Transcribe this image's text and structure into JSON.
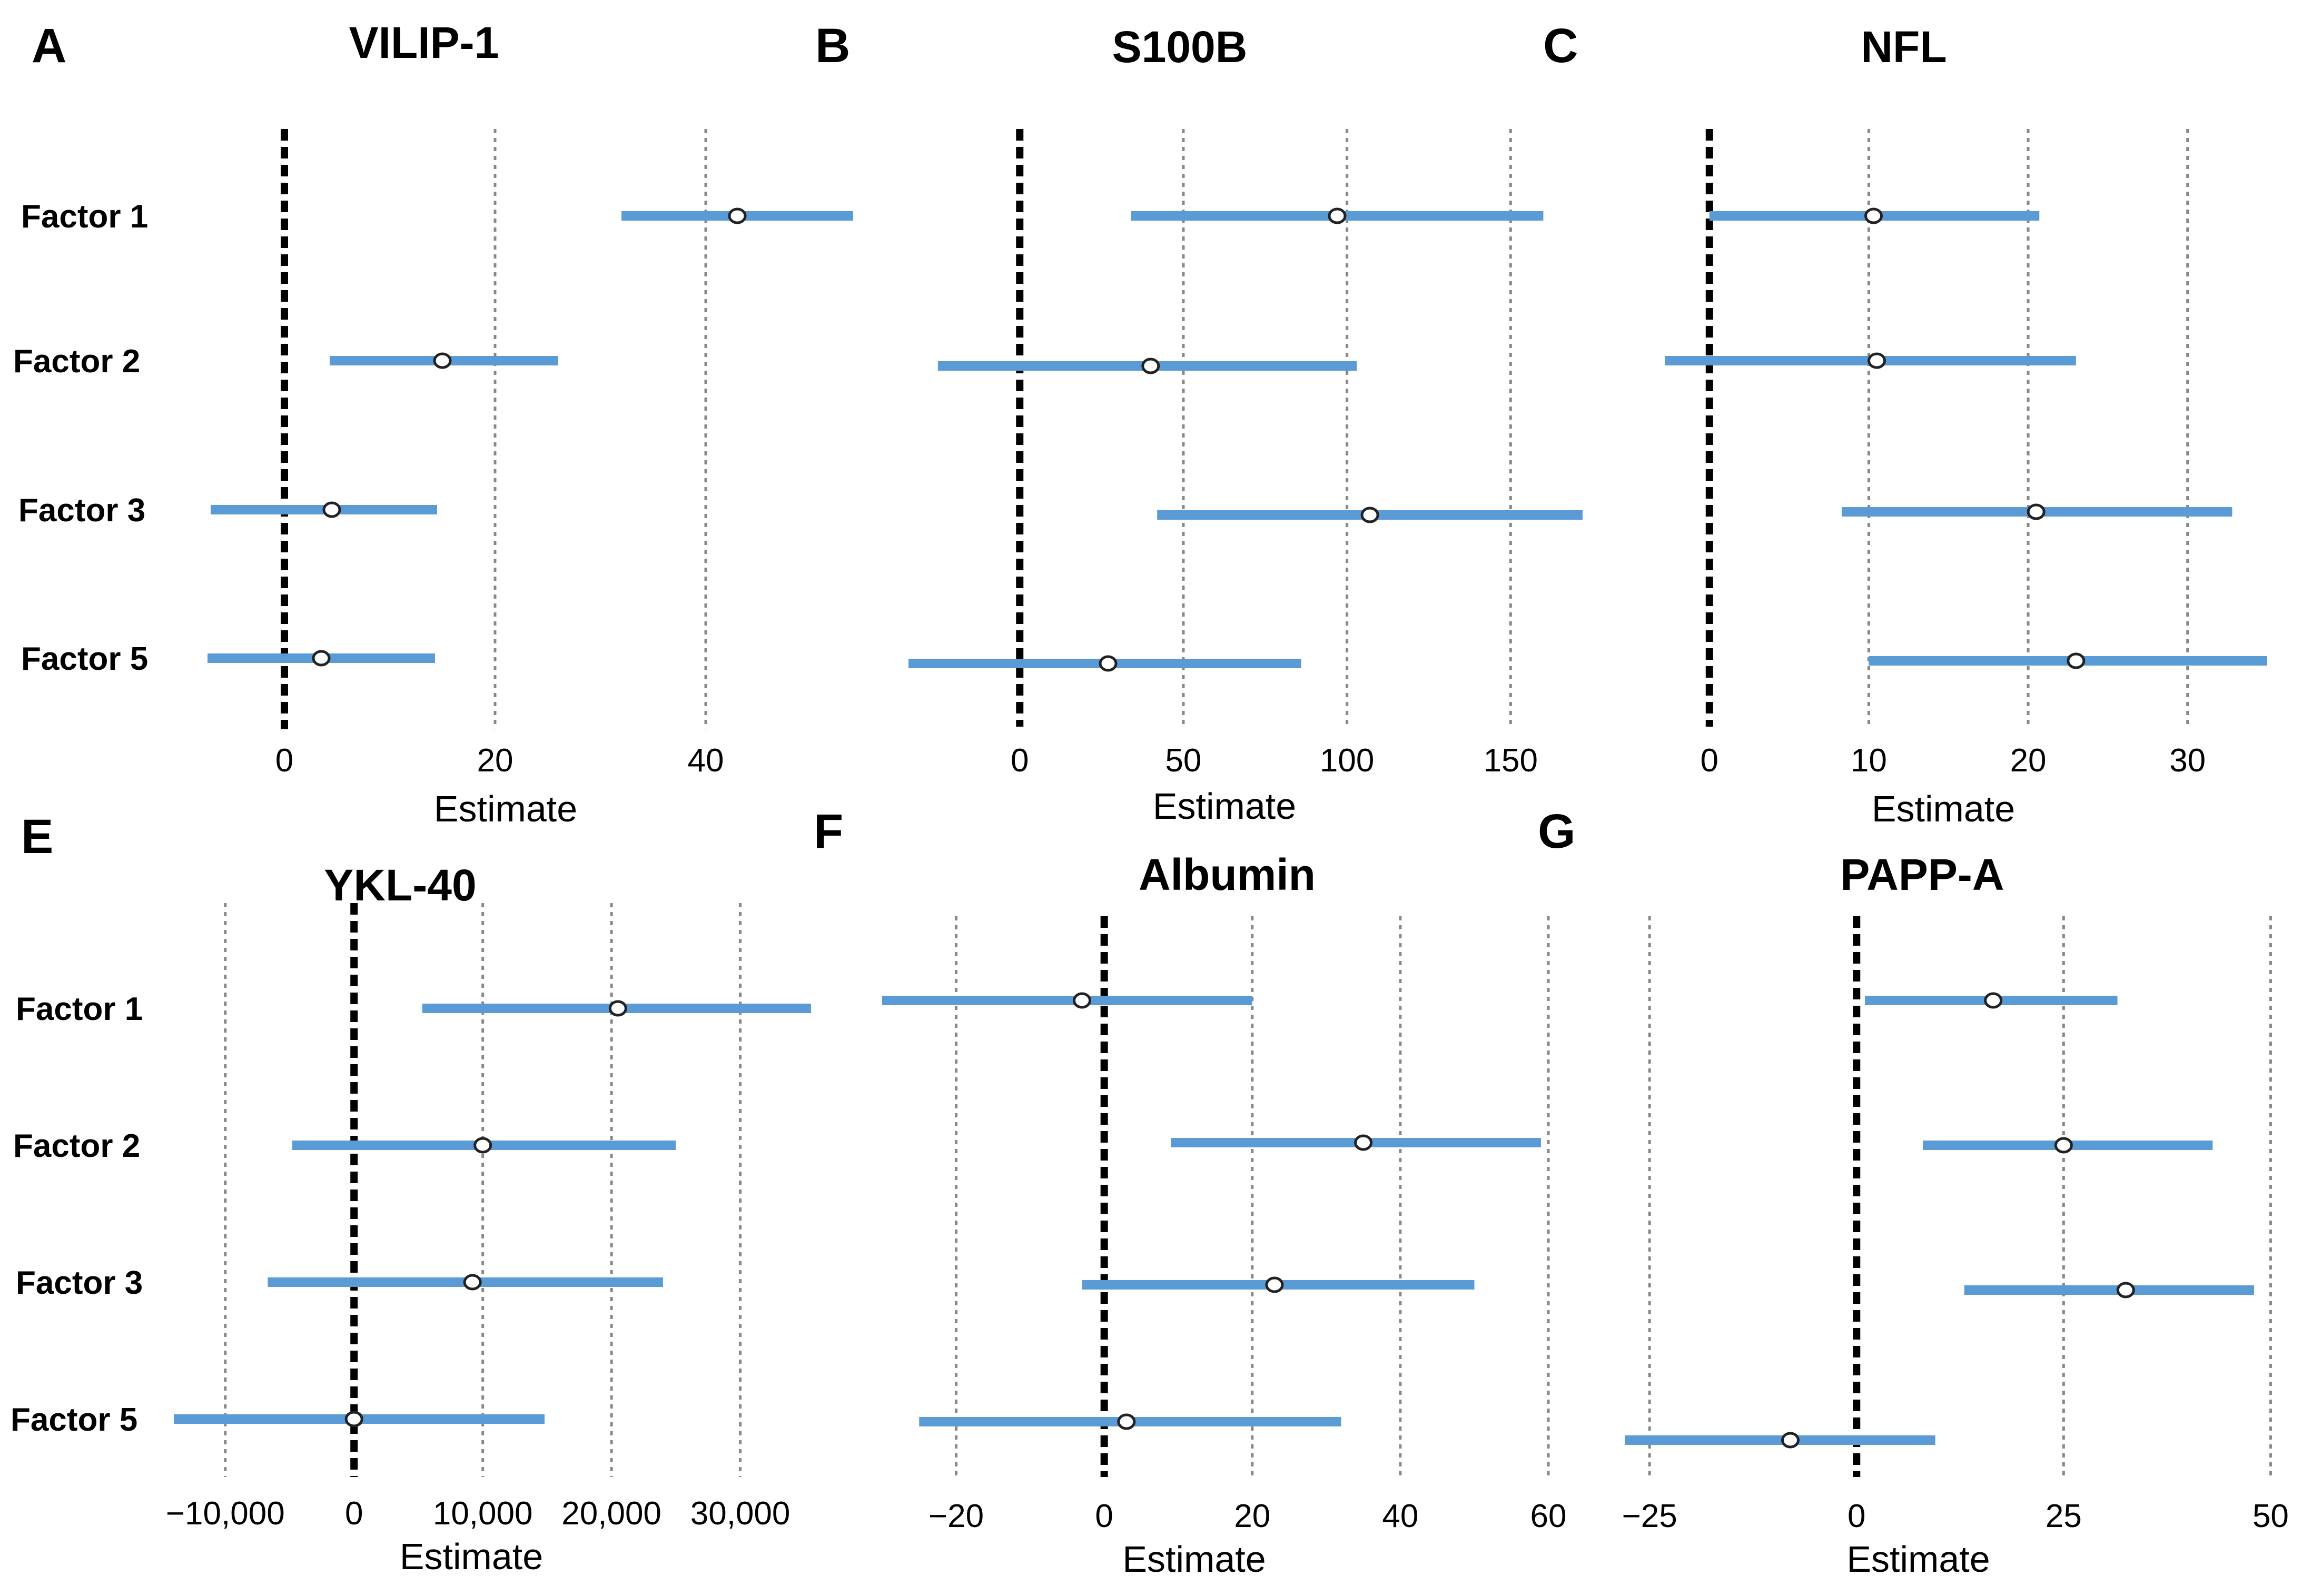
{
  "chart_data": [
    {
      "type": "forest",
      "letter": "A",
      "title": "VILIP-1",
      "xlabel": "Estimate",
      "xlim": [
        -8,
        54
      ],
      "ticks": [
        0,
        20,
        40
      ],
      "tick_labels": [
        "0",
        "20",
        "40"
      ],
      "gridlines": [
        20,
        40
      ],
      "categories": [
        "Factor 1",
        "Factor 2",
        "Factor 3",
        "Factor 5"
      ],
      "estimate": [
        43,
        15,
        4.5,
        3.5
      ],
      "lower": [
        32,
        4.3,
        -7,
        -7.3
      ],
      "upper": [
        54,
        26,
        14.5,
        14.3
      ]
    },
    {
      "type": "forest",
      "letter": "B",
      "title": "S100B",
      "xlabel": "Estimate",
      "xlim": [
        -34,
        172
      ],
      "ticks": [
        0,
        50,
        100,
        150
      ],
      "tick_labels": [
        "0",
        "50",
        "100",
        "150"
      ],
      "gridlines": [
        50,
        100,
        150
      ],
      "categories": [
        "Factor 1",
        "Factor 2",
        "Factor 3",
        "Factor 5"
      ],
      "estimate": [
        97,
        40,
        107,
        27
      ],
      "lower": [
        34,
        -25,
        42,
        -34
      ],
      "upper": [
        160,
        103,
        172,
        86
      ]
    },
    {
      "type": "forest",
      "letter": "C",
      "title": "NFL",
      "xlabel": "Estimate",
      "xlim": [
        -3,
        35
      ],
      "ticks": [
        0,
        10,
        20,
        30
      ],
      "tick_labels": [
        "0",
        "10",
        "20",
        "30"
      ],
      "gridlines": [
        10,
        20,
        30
      ],
      "categories": [
        "Factor 1",
        "Factor 2",
        "Factor 3",
        "Factor 5"
      ],
      "estimate": [
        10.3,
        10.5,
        20.5,
        23
      ],
      "lower": [
        0,
        -2.8,
        8.3,
        10
      ],
      "upper": [
        20.7,
        23,
        32.8,
        35
      ]
    },
    {
      "type": "forest",
      "letter": "E",
      "title": "YKL-40",
      "xlabel": "Estimate",
      "xlim": [
        -14000,
        35500
      ],
      "ticks": [
        -10000,
        0,
        10000,
        20000,
        30000
      ],
      "tick_labels": [
        "−10,000",
        "0",
        "10,000",
        "20,000",
        "30,000"
      ],
      "gridlines": [
        -10000,
        10000,
        20000,
        30000
      ],
      "categories": [
        "Factor 1",
        "Factor 2",
        "Factor 3",
        "Factor 5"
      ],
      "estimate": [
        20500,
        10000,
        9200,
        0
      ],
      "lower": [
        5300,
        -4800,
        -6700,
        -14000
      ],
      "upper": [
        35500,
        25000,
        24000,
        14800
      ]
    },
    {
      "type": "forest",
      "letter": "F",
      "title": "Albumin",
      "xlabel": "Estimate",
      "xlim": [
        -30,
        60
      ],
      "ticks": [
        -20,
        0,
        20,
        40,
        60
      ],
      "tick_labels": [
        "−20",
        "0",
        "20",
        "40",
        "60"
      ],
      "gridlines": [
        -20,
        20,
        40,
        60
      ],
      "categories": [
        "Factor 1",
        "Factor 2",
        "Factor 3",
        "Factor 5"
      ],
      "estimate": [
        -3,
        35,
        23,
        3
      ],
      "lower": [
        -30,
        9,
        -3,
        -25
      ],
      "upper": [
        20,
        59,
        50,
        32
      ]
    },
    {
      "type": "forest",
      "letter": "G",
      "title": "PAPP-A",
      "xlabel": "Estimate",
      "xlim": [
        -28,
        48
      ],
      "ticks": [
        -25,
        0,
        25,
        50
      ],
      "tick_labels": [
        "−25",
        "0",
        "25",
        "50"
      ],
      "gridlines": [
        -25,
        25,
        50
      ],
      "categories": [
        "Factor 1",
        "Factor 2",
        "Factor 3",
        "Factor 5"
      ],
      "estimate": [
        16.5,
        25,
        32.5,
        -8
      ],
      "lower": [
        1,
        8,
        13,
        -28
      ],
      "upper": [
        31.5,
        43,
        48,
        9.5
      ]
    }
  ]
}
